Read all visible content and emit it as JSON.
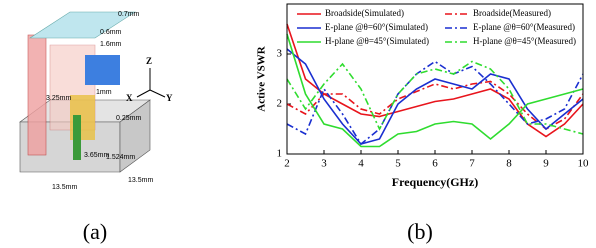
{
  "panel_a": {
    "caption": "(a)",
    "labels": [
      "0.7mm",
      "0.6mm",
      "1.6mm",
      "Z",
      "X",
      "Y",
      "1mm",
      "3.25mm",
      "0.25mm",
      "3.65mm",
      "1.524mm",
      "13.5mm",
      "13.5mm"
    ]
  },
  "panel_b": {
    "caption": "(b)"
  },
  "chart_data": {
    "type": "line",
    "x_label": "Frequency(GHz)",
    "y_label": "Active VSWR",
    "x": [
      2,
      2.5,
      3,
      3.5,
      4,
      4.5,
      5,
      5.5,
      6,
      6.5,
      7,
      7.5,
      8,
      8.5,
      9,
      9.5,
      10
    ],
    "xlim": [
      2,
      10
    ],
    "xticks": [
      2,
      3,
      4,
      5,
      6,
      7,
      8,
      9,
      10
    ],
    "ylim": [
      1,
      4
    ],
    "yticks": [
      1,
      2,
      3
    ],
    "legend": "top",
    "series": [
      {
        "name": "Broadside(Simulated)",
        "color": "#e8141c",
        "dash": "solid",
        "values": [
          3.6,
          2.5,
          2.2,
          2.0,
          1.8,
          1.75,
          1.85,
          1.95,
          2.05,
          2.1,
          2.2,
          2.3,
          2.1,
          1.6,
          1.35,
          1.6,
          2.0
        ]
      },
      {
        "name": "Broadside(Measured)",
        "color": "#e8141c",
        "dash": "dashdot",
        "values": [
          2.0,
          1.8,
          2.2,
          2.2,
          1.9,
          1.8,
          2.1,
          2.25,
          2.4,
          2.3,
          2.4,
          2.45,
          2.2,
          1.8,
          1.5,
          1.7,
          2.2
        ]
      },
      {
        "name": "E-plane @θ=60°(Simulated)",
        "color": "#1a2fd0",
        "dash": "solid",
        "values": [
          3.1,
          2.8,
          2.1,
          1.6,
          1.2,
          1.3,
          2.0,
          2.3,
          2.5,
          2.4,
          2.3,
          2.6,
          2.5,
          1.9,
          1.5,
          1.8,
          2.1
        ]
      },
      {
        "name": "E-plane @θ=60°(Measured)",
        "color": "#1a2fd0",
        "dash": "dashdot",
        "values": [
          1.6,
          1.4,
          2.3,
          1.8,
          1.2,
          1.5,
          2.2,
          2.6,
          2.85,
          2.6,
          2.75,
          2.4,
          2.0,
          1.6,
          1.7,
          1.9,
          2.6
        ]
      },
      {
        "name": "H-plane @θ=45°(Simulated)",
        "color": "#2fdc2f",
        "dash": "solid",
        "values": [
          3.4,
          2.2,
          1.6,
          1.5,
          1.15,
          1.15,
          1.4,
          1.45,
          1.6,
          1.65,
          1.6,
          1.3,
          1.6,
          2.0,
          2.1,
          2.2,
          2.3
        ]
      },
      {
        "name": "H-plane @θ=45°(Measured)",
        "color": "#2fdc2f",
        "dash": "dashdot",
        "values": [
          2.5,
          1.9,
          2.4,
          2.8,
          2.3,
          1.5,
          2.2,
          2.6,
          2.7,
          2.6,
          2.85,
          2.7,
          2.3,
          1.6,
          1.6,
          1.5,
          1.4
        ]
      }
    ]
  }
}
